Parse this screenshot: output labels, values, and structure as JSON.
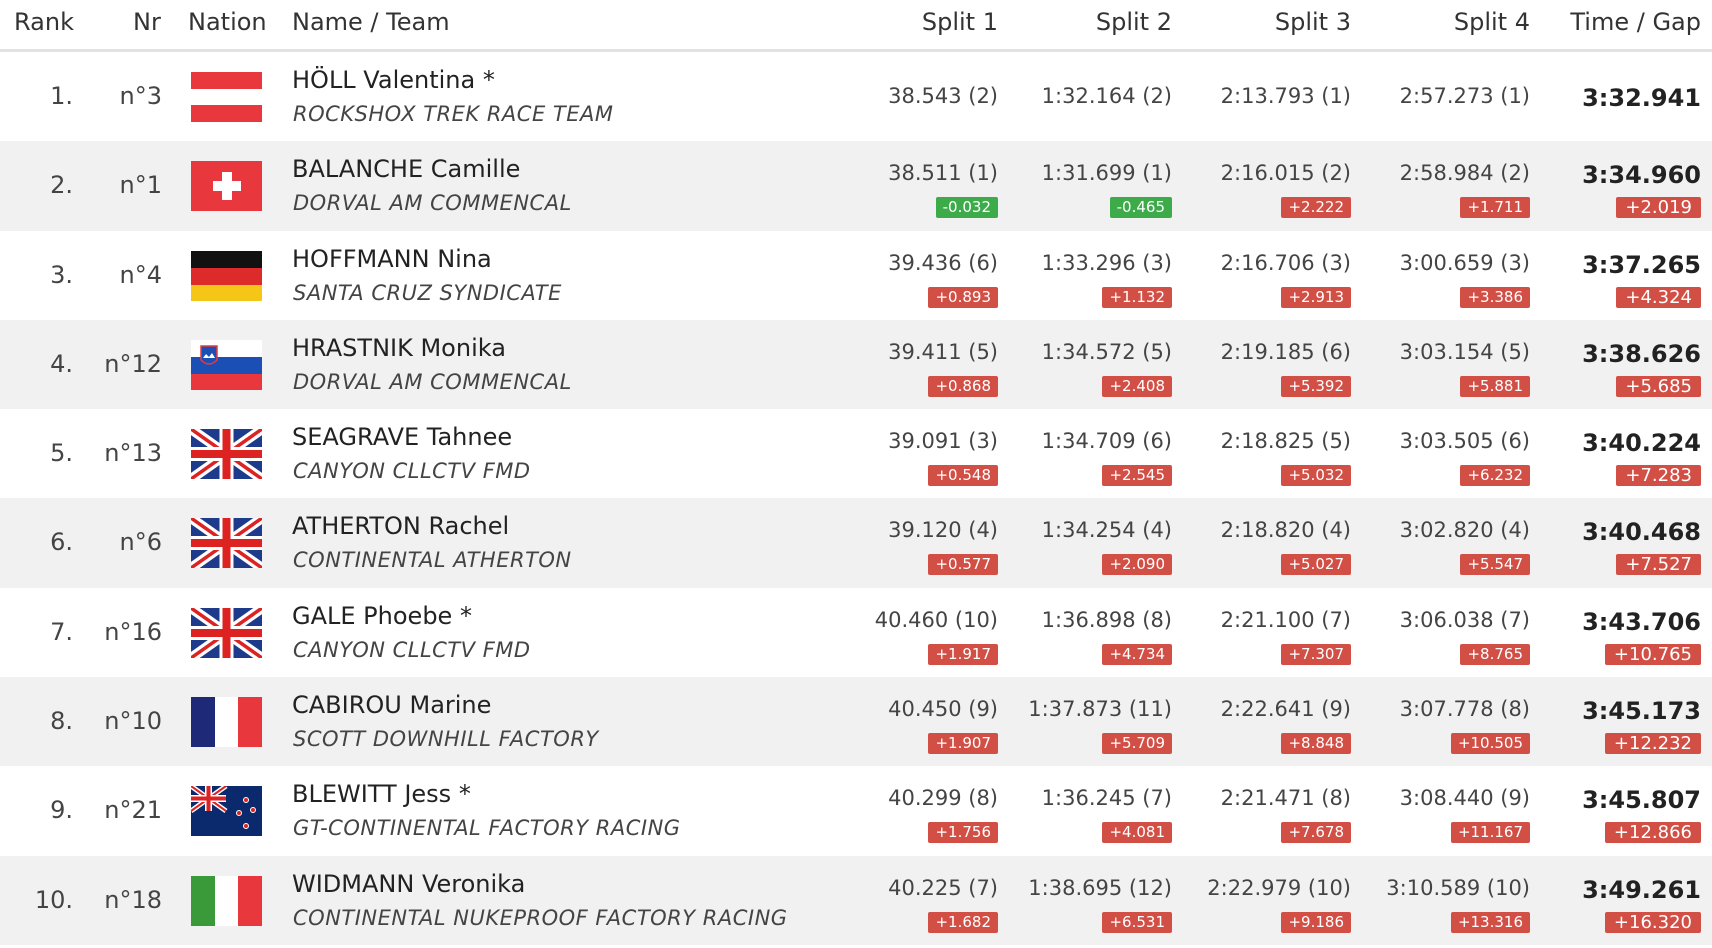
{
  "headers": {
    "rank": "Rank",
    "nr": "Nr",
    "nation": "Nation",
    "name_team": "Name / Team",
    "split1": "Split 1",
    "split2": "Split 2",
    "split3": "Split 3",
    "split4": "Split 4",
    "time_gap": "Time / Gap"
  },
  "rows": [
    {
      "rank": "1.",
      "nr": "n°3",
      "flag": "austria-flag",
      "name": "HÖLL Valentina *",
      "team": "ROCKSHOX TREK RACE TEAM",
      "split1": "38.543 (2)",
      "split1_gap": "",
      "split2": "1:32.164 (2)",
      "split2_gap": "",
      "split3": "2:13.793 (1)",
      "split3_gap": "",
      "split4": "2:57.273 (1)",
      "split4_gap": "",
      "time": "3:32.941",
      "gap": ""
    },
    {
      "rank": "2.",
      "nr": "n°1",
      "flag": "switzerland-flag",
      "name": "BALANCHE Camille",
      "team": "DORVAL AM COMMENCAL",
      "split1": "38.511 (1)",
      "split1_gap": "-0.032",
      "split2": "1:31.699 (1)",
      "split2_gap": "-0.465",
      "split3": "2:16.015 (2)",
      "split3_gap": "+2.222",
      "split4": "2:58.984 (2)",
      "split4_gap": "+1.711",
      "time": "3:34.960",
      "gap": "+2.019"
    },
    {
      "rank": "3.",
      "nr": "n°4",
      "flag": "germany-flag",
      "name": "HOFFMANN Nina",
      "team": "SANTA CRUZ SYNDICATE",
      "split1": "39.436 (6)",
      "split1_gap": "+0.893",
      "split2": "1:33.296 (3)",
      "split2_gap": "+1.132",
      "split3": "2:16.706 (3)",
      "split3_gap": "+2.913",
      "split4": "3:00.659 (3)",
      "split4_gap": "+3.386",
      "time": "3:37.265",
      "gap": "+4.324"
    },
    {
      "rank": "4.",
      "nr": "n°12",
      "flag": "slovenia-flag",
      "name": "HRASTNIK Monika",
      "team": "DORVAL AM COMMENCAL",
      "split1": "39.411 (5)",
      "split1_gap": "+0.868",
      "split2": "1:34.572 (5)",
      "split2_gap": "+2.408",
      "split3": "2:19.185 (6)",
      "split3_gap": "+5.392",
      "split4": "3:03.154 (5)",
      "split4_gap": "+5.881",
      "time": "3:38.626",
      "gap": "+5.685"
    },
    {
      "rank": "5.",
      "nr": "n°13",
      "flag": "great-britain-flag",
      "name": "SEAGRAVE Tahnee",
      "team": "CANYON CLLCTV FMD",
      "split1": "39.091 (3)",
      "split1_gap": "+0.548",
      "split2": "1:34.709 (6)",
      "split2_gap": "+2.545",
      "split3": "2:18.825 (5)",
      "split3_gap": "+5.032",
      "split4": "3:03.505 (6)",
      "split4_gap": "+6.232",
      "time": "3:40.224",
      "gap": "+7.283"
    },
    {
      "rank": "6.",
      "nr": "n°6",
      "flag": "great-britain-flag",
      "name": "ATHERTON Rachel",
      "team": "CONTINENTAL ATHERTON",
      "split1": "39.120 (4)",
      "split1_gap": "+0.577",
      "split2": "1:34.254 (4)",
      "split2_gap": "+2.090",
      "split3": "2:18.820 (4)",
      "split3_gap": "+5.027",
      "split4": "3:02.820 (4)",
      "split4_gap": "+5.547",
      "time": "3:40.468",
      "gap": "+7.527"
    },
    {
      "rank": "7.",
      "nr": "n°16",
      "flag": "great-britain-flag",
      "name": "GALE Phoebe *",
      "team": "CANYON CLLCTV FMD",
      "split1": "40.460 (10)",
      "split1_gap": "+1.917",
      "split2": "1:36.898 (8)",
      "split2_gap": "+4.734",
      "split3": "2:21.100 (7)",
      "split3_gap": "+7.307",
      "split4": "3:06.038 (7)",
      "split4_gap": "+8.765",
      "time": "3:43.706",
      "gap": "+10.765"
    },
    {
      "rank": "8.",
      "nr": "n°10",
      "flag": "france-flag",
      "name": "CABIROU Marine",
      "team": "SCOTT DOWNHILL FACTORY",
      "split1": "40.450 (9)",
      "split1_gap": "+1.907",
      "split2": "1:37.873 (11)",
      "split2_gap": "+5.709",
      "split3": "2:22.641 (9)",
      "split3_gap": "+8.848",
      "split4": "3:07.778 (8)",
      "split4_gap": "+10.505",
      "time": "3:45.173",
      "gap": "+12.232"
    },
    {
      "rank": "9.",
      "nr": "n°21",
      "flag": "new-zealand-flag",
      "name": "BLEWITT Jess *",
      "team": "GT-CONTINENTAL FACTORY RACING",
      "split1": "40.299 (8)",
      "split1_gap": "+1.756",
      "split2": "1:36.245 (7)",
      "split2_gap": "+4.081",
      "split3": "2:21.471 (8)",
      "split3_gap": "+7.678",
      "split4": "3:08.440 (9)",
      "split4_gap": "+11.167",
      "time": "3:45.807",
      "gap": "+12.866"
    },
    {
      "rank": "10.",
      "nr": "n°18",
      "flag": "italy-flag",
      "name": "WIDMANN Veronika",
      "team": "CONTINENTAL NUKEPROOF FACTORY RACING",
      "split1": "40.225 (7)",
      "split1_gap": "+1.682",
      "split2": "1:38.695 (12)",
      "split2_gap": "+6.531",
      "split3": "2:22.979 (10)",
      "split3_gap": "+9.186",
      "split4": "3:10.589 (10)",
      "split4_gap": "+13.316",
      "time": "3:49.261",
      "gap": "+16.320"
    }
  ]
}
